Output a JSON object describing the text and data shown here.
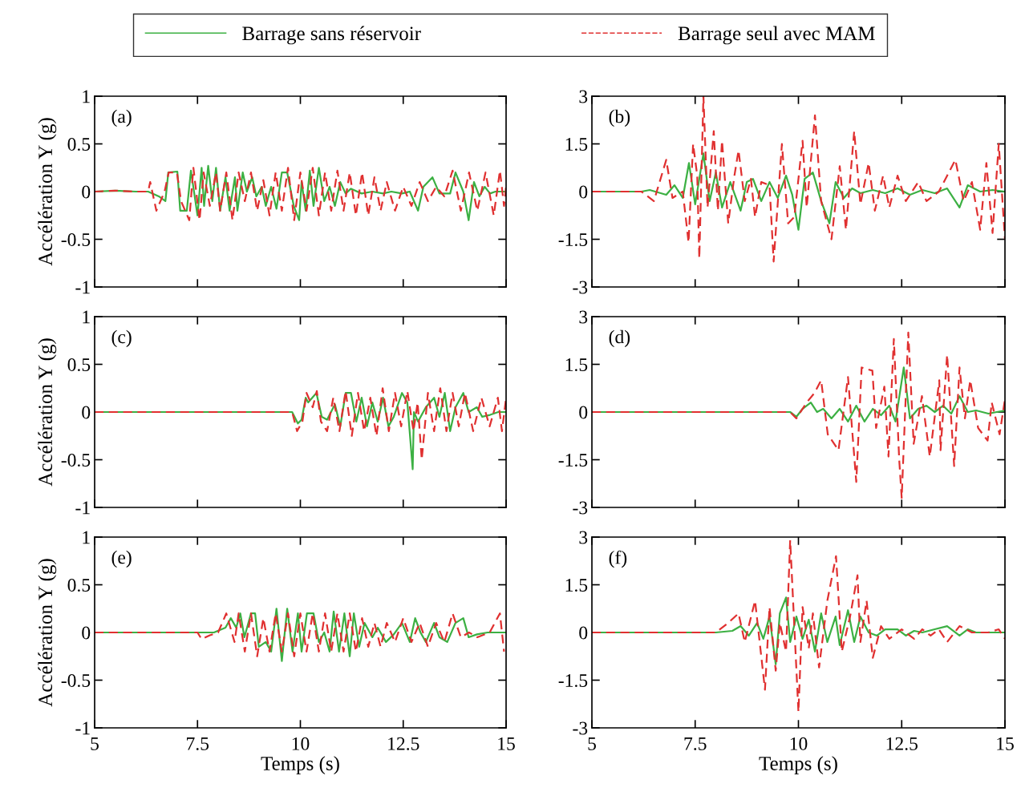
{
  "chart_data": [
    {
      "type": "line",
      "ylabel": "Accélération Y (g)",
      "annotations": [
        "(a)"
      ],
      "xlim": [
        5,
        15
      ],
      "xticks": [
        5,
        7.5,
        10,
        12.5,
        15
      ],
      "ylim": [
        -1,
        1
      ],
      "yticks": [
        -1,
        -0.5,
        0,
        0.5,
        1
      ],
      "tick_labels": "y",
      "legend": "top",
      "grid": false,
      "series": [
        {
          "name": "Barrage sans réservoir",
          "color": "#3cb043",
          "line_style": "solid",
          "x": [
            5,
            5.5,
            6.0,
            6.3,
            6.56,
            6.72,
            6.79,
            7.01,
            7.08,
            7.24,
            7.34,
            7.5,
            7.6,
            7.66,
            7.76,
            7.86,
            7.95,
            8.05,
            8.18,
            8.28,
            8.41,
            8.47,
            8.6,
            8.7,
            8.83,
            8.93,
            9.06,
            9.16,
            9.29,
            9.42,
            9.55,
            9.68,
            9.84,
            9.97,
            10.03,
            10.13,
            10.23,
            10.32,
            10.45,
            10.58,
            10.71,
            10.84,
            10.97,
            11.1,
            11.23,
            11.49,
            11.75,
            12.01,
            12.21,
            12.47,
            12.66,
            12.86,
            12.99,
            13.21,
            13.38,
            13.64,
            13.77,
            13.96,
            14.09,
            14.22,
            14.35,
            14.48,
            14.61,
            14.74,
            15.0
          ],
          "values": [
            0,
            0.01,
            0,
            0,
            -0.05,
            -0.1,
            0.2,
            0.21,
            -0.2,
            -0.2,
            0.22,
            -0.25,
            0.25,
            -0.15,
            0.27,
            -0.1,
            0.25,
            -0.2,
            0.15,
            -0.2,
            0.15,
            -0.2,
            0.2,
            0.0,
            0.15,
            -0.05,
            0.05,
            -0.15,
            0.05,
            -0.18,
            0.2,
            0.2,
            -0.15,
            -0.3,
            0.1,
            -0.2,
            0.22,
            -0.15,
            0.25,
            -0.1,
            0.05,
            -0.15,
            0.1,
            -0.02,
            0.03,
            -0.02,
            0.0,
            -0.02,
            0.0,
            -0.02,
            0.0,
            -0.2,
            0.05,
            0.15,
            -0.02,
            -0.02,
            0.2,
            0.0,
            -0.3,
            0.1,
            -0.05,
            0.05,
            -0.02,
            0.0,
            0.0
          ]
        },
        {
          "name": "Barrage seul avec MAM",
          "color": "#e03030",
          "line_style": "dashed",
          "x": [
            5,
            5.5,
            6.0,
            6.3,
            6.35,
            6.5,
            6.7,
            6.8,
            7.0,
            7.1,
            7.3,
            7.4,
            7.55,
            7.65,
            7.8,
            7.95,
            8.05,
            8.2,
            8.35,
            8.5,
            8.65,
            8.8,
            8.95,
            9.1,
            9.25,
            9.4,
            9.55,
            9.7,
            9.85,
            10.0,
            10.15,
            10.3,
            10.45,
            10.6,
            10.75,
            10.9,
            11.05,
            11.2,
            11.35,
            11.5,
            11.65,
            11.8,
            11.95,
            12.1,
            12.3,
            12.5,
            12.7,
            12.9,
            13.1,
            13.3,
            13.5,
            13.7,
            13.9,
            14.1,
            14.3,
            14.5,
            14.7,
            14.85,
            14.95,
            15.0
          ],
          "values": [
            0,
            0.01,
            0,
            0,
            0.1,
            -0.2,
            0.0,
            0.2,
            0.2,
            -0.1,
            -0.3,
            0.25,
            -0.3,
            0.2,
            -0.15,
            0.2,
            -0.2,
            0.2,
            -0.3,
            0.2,
            -0.1,
            0.2,
            -0.2,
            0.12,
            -0.25,
            0.2,
            -0.2,
            0.25,
            -0.3,
            0.2,
            -0.2,
            0.25,
            -0.25,
            0.2,
            -0.2,
            0.22,
            -0.2,
            0.2,
            -0.25,
            0.2,
            -0.25,
            0.15,
            -0.2,
            0.1,
            -0.2,
            0.05,
            -0.15,
            0.1,
            -0.1,
            0.05,
            -0.05,
            0.22,
            -0.2,
            0.2,
            -0.2,
            0.2,
            -0.25,
            0.22,
            -0.15,
            0.05
          ]
        }
      ]
    },
    {
      "type": "line",
      "annotations": [
        "(b)"
      ],
      "xlim": [
        5,
        15
      ],
      "xticks": [
        5,
        7.5,
        10,
        12.5,
        15
      ],
      "ylim": [
        -3,
        3
      ],
      "yticks": [
        -3,
        -1.5,
        0,
        1.5,
        3
      ],
      "tick_labels": "y",
      "grid": false,
      "series": [
        {
          "color": "#3cb043",
          "line_style": "solid",
          "x": [
            5,
            6.2,
            6.4,
            6.8,
            7.0,
            7.2,
            7.35,
            7.5,
            7.7,
            7.85,
            8.0,
            8.15,
            8.35,
            8.6,
            8.75,
            8.9,
            9.1,
            9.3,
            9.5,
            9.7,
            9.85,
            10.0,
            10.15,
            10.35,
            10.55,
            10.75,
            10.9,
            11.1,
            11.3,
            11.5,
            11.8,
            12.1,
            12.4,
            12.7,
            13.0,
            13.3,
            13.6,
            13.9,
            14.1,
            14.4,
            14.7,
            15.0
          ],
          "values": [
            0,
            0,
            0.05,
            -0.1,
            0.2,
            -0.2,
            0.9,
            -0.4,
            1.2,
            -0.3,
            0.6,
            -0.5,
            0.3,
            -0.6,
            0.3,
            0.4,
            -0.3,
            0.3,
            -0.2,
            0.5,
            -0.1,
            -1.2,
            0.4,
            0.6,
            -0.3,
            -1.0,
            0.3,
            -0.2,
            0.1,
            -0.05,
            0.05,
            -0.05,
            0.1,
            -0.1,
            0.05,
            -0.05,
            0.1,
            -0.5,
            0.2,
            0.0,
            0.05,
            0.0
          ]
        },
        {
          "color": "#e03030",
          "line_style": "dashed",
          "x": [
            5,
            6.2,
            6.5,
            6.8,
            6.95,
            7.2,
            7.34,
            7.45,
            7.55,
            7.6,
            7.7,
            7.8,
            7.95,
            8.05,
            8.15,
            8.3,
            8.45,
            8.55,
            8.7,
            8.85,
            8.95,
            9.1,
            9.3,
            9.4,
            9.6,
            9.75,
            9.9,
            10.1,
            10.2,
            10.4,
            10.55,
            10.8,
            11.0,
            11.15,
            11.35,
            11.5,
            11.7,
            11.85,
            12.05,
            12.2,
            12.4,
            12.6,
            12.9,
            13.1,
            13.4,
            13.6,
            13.8,
            14.0,
            14.2,
            14.4,
            14.55,
            14.7,
            14.85,
            15.0
          ],
          "values": [
            0,
            0,
            -0.3,
            1.0,
            -0.2,
            0.0,
            -1.6,
            1.5,
            0.5,
            -2.1,
            3.0,
            -0.5,
            1.9,
            -0.6,
            1.6,
            -1.0,
            0.5,
            1.3,
            -0.3,
            0.4,
            -0.8,
            0.3,
            0.2,
            -2.2,
            1.5,
            -1.0,
            -0.8,
            1.6,
            -0.5,
            2.4,
            -0.3,
            -1.5,
            0.8,
            -1.2,
            1.9,
            -0.4,
            0.9,
            -0.6,
            0.5,
            -0.5,
            0.5,
            -0.3,
            0.3,
            -0.3,
            0.0,
            0.5,
            1.0,
            -0.3,
            0.3,
            -1.2,
            0.9,
            -1.3,
            1.5,
            -1.5
          ]
        }
      ]
    },
    {
      "type": "line",
      "ylabel": "Accélération Y (g)",
      "annotations": [
        "(c)"
      ],
      "xlim": [
        5,
        15
      ],
      "xticks": [
        5,
        7.5,
        10,
        12.5,
        15
      ],
      "ylim": [
        -1,
        1
      ],
      "yticks": [
        -1,
        -0.5,
        0,
        0.5,
        1
      ],
      "tick_labels": "y",
      "grid": false,
      "series": [
        {
          "color": "#3cb043",
          "line_style": "solid",
          "x": [
            5,
            9.8,
            9.94,
            10.03,
            10.13,
            10.19,
            10.39,
            10.52,
            10.65,
            10.84,
            10.97,
            11.1,
            11.23,
            11.36,
            11.49,
            11.62,
            11.75,
            11.88,
            12.01,
            12.14,
            12.27,
            12.47,
            12.6,
            12.73,
            12.76,
            12.86,
            13.05,
            13.25,
            13.38,
            13.51,
            13.64,
            13.77,
            13.96,
            14.09,
            14.29,
            14.42,
            14.61,
            14.81,
            15.0
          ],
          "values": [
            0,
            0.0,
            -0.12,
            -0.08,
            0.15,
            0.1,
            0.2,
            -0.05,
            -0.08,
            0.08,
            -0.15,
            0.2,
            0.2,
            -0.1,
            0.15,
            -0.15,
            0.1,
            -0.1,
            0.15,
            -0.15,
            -0.05,
            0.2,
            0.1,
            -0.6,
            0.0,
            -0.1,
            0.05,
            0.15,
            -0.05,
            0.2,
            -0.2,
            0.05,
            0.2,
            0.0,
            0.05,
            -0.05,
            -0.03,
            0.0,
            0.0
          ]
        },
        {
          "color": "#e03030",
          "line_style": "dashed",
          "x": [
            5,
            9.8,
            9.92,
            10.05,
            10.15,
            10.3,
            10.4,
            10.5,
            10.65,
            10.8,
            10.95,
            11.1,
            11.25,
            11.4,
            11.55,
            11.7,
            11.85,
            12.0,
            12.15,
            12.3,
            12.45,
            12.6,
            12.75,
            12.85,
            12.95,
            13.1,
            13.25,
            13.4,
            13.55,
            13.7,
            13.85,
            14.0,
            14.2,
            14.4,
            14.6,
            14.8,
            14.9,
            15.0
          ],
          "values": [
            0,
            0,
            -0.2,
            -0.1,
            0.2,
            0.05,
            0.22,
            -0.1,
            -0.2,
            0.15,
            -0.2,
            0.22,
            -0.25,
            0.2,
            -0.2,
            0.15,
            -0.25,
            0.25,
            -0.2,
            0.2,
            -0.15,
            0.22,
            -0.2,
            0.1,
            -0.5,
            0.2,
            -0.2,
            0.25,
            -0.2,
            0.2,
            -0.15,
            0.2,
            -0.2,
            0.15,
            -0.15,
            0.15,
            -0.2,
            0.15
          ]
        }
      ]
    },
    {
      "type": "line",
      "annotations": [
        "(d)"
      ],
      "xlim": [
        5,
        15
      ],
      "xticks": [
        5,
        7.5,
        10,
        12.5,
        15
      ],
      "ylim": [
        -3,
        3
      ],
      "yticks": [
        -3,
        -1.5,
        0,
        1.5,
        3
      ],
      "tick_labels": "y",
      "grid": false,
      "series": [
        {
          "color": "#3cb043",
          "line_style": "solid",
          "x": [
            5,
            9.8,
            9.95,
            10.1,
            10.3,
            10.45,
            10.6,
            10.8,
            11.0,
            11.2,
            11.4,
            11.6,
            11.8,
            12.0,
            12.2,
            12.35,
            12.55,
            12.7,
            12.9,
            13.1,
            13.3,
            13.5,
            13.7,
            13.9,
            14.1,
            14.3,
            14.6,
            14.8,
            15.0
          ],
          "values": [
            0,
            0,
            -0.15,
            0.1,
            0.3,
            0.0,
            0.1,
            -0.2,
            0.1,
            -0.3,
            0.2,
            -0.3,
            0.1,
            -0.1,
            0.2,
            -0.3,
            1.4,
            -0.2,
            0.1,
            0.2,
            0.0,
            0.2,
            -0.05,
            0.5,
            0.0,
            0.05,
            -0.05,
            0.0,
            0.05
          ]
        },
        {
          "color": "#e03030",
          "line_style": "dashed",
          "x": [
            5,
            9.8,
            9.95,
            10.2,
            10.39,
            10.55,
            10.71,
            10.97,
            11.2,
            11.4,
            11.53,
            11.79,
            11.88,
            12.08,
            12.18,
            12.31,
            12.44,
            12.5,
            12.66,
            12.79,
            12.99,
            13.18,
            13.41,
            13.44,
            13.6,
            13.77,
            13.9,
            14.03,
            14.16,
            14.35,
            14.58,
            14.68,
            14.87,
            15.0
          ],
          "values": [
            0,
            0,
            -0.2,
            0.3,
            0.6,
            1.0,
            -0.7,
            -1.2,
            1.1,
            -2.2,
            1.4,
            1.3,
            -0.5,
            0.8,
            -1.4,
            2.3,
            -1.5,
            -2.7,
            2.5,
            -1.0,
            0.5,
            -1.4,
            1.0,
            -1.2,
            1.8,
            -1.7,
            1.4,
            -0.2,
            1.0,
            -0.5,
            -0.9,
            0.3,
            -0.7,
            0.4
          ]
        }
      ]
    },
    {
      "type": "line",
      "xlabel": "Temps (s)",
      "ylabel": "Accélération Y (g)",
      "annotations": [
        "(e)"
      ],
      "xlim": [
        5,
        15
      ],
      "xticks": [
        5,
        7.5,
        10,
        12.5,
        15
      ],
      "ylim": [
        -1,
        1
      ],
      "yticks": [
        -1,
        -0.5,
        0,
        0.5,
        1
      ],
      "grid": false,
      "series": [
        {
          "color": "#3cb043",
          "line_style": "solid",
          "x": [
            5,
            7.5,
            7.9,
            8.18,
            8.31,
            8.44,
            8.54,
            8.64,
            8.8,
            8.9,
            8.99,
            9.16,
            9.29,
            9.42,
            9.55,
            9.68,
            9.81,
            9.94,
            10.03,
            10.16,
            10.32,
            10.45,
            10.58,
            10.71,
            10.81,
            10.94,
            11.07,
            11.2,
            11.3,
            11.43,
            11.56,
            11.75,
            11.88,
            12.08,
            12.27,
            12.47,
            12.66,
            12.79,
            12.92,
            13.05,
            13.25,
            13.38,
            13.57,
            13.77,
            13.96,
            14.09,
            14.29,
            14.55,
            14.74,
            15.0
          ],
          "values": [
            0,
            0.0,
            0.0,
            0.05,
            0.15,
            0.05,
            0.2,
            -0.05,
            0.2,
            0.2,
            -0.15,
            -0.1,
            -0.2,
            0.25,
            -0.3,
            0.25,
            -0.2,
            0.2,
            -0.2,
            0.2,
            0.2,
            -0.1,
            0.0,
            -0.2,
            0.22,
            -0.2,
            0.2,
            -0.25,
            0.2,
            -0.15,
            0.1,
            -0.05,
            0.05,
            -0.1,
            -0.02,
            0.1,
            -0.1,
            0.15,
            0.0,
            -0.1,
            0.1,
            -0.05,
            -0.1,
            0.1,
            0.15,
            -0.05,
            -0.02,
            0.0,
            0.0,
            0.0
          ]
        },
        {
          "color": "#e03030",
          "line_style": "dashed",
          "x": [
            5,
            7.5,
            7.6,
            7.8,
            8.0,
            8.2,
            8.4,
            8.5,
            8.65,
            8.8,
            8.95,
            9.1,
            9.25,
            9.4,
            9.55,
            9.7,
            9.85,
            10.0,
            10.15,
            10.3,
            10.45,
            10.6,
            10.75,
            10.9,
            11.05,
            11.2,
            11.35,
            11.5,
            11.65,
            11.8,
            11.95,
            12.1,
            12.3,
            12.5,
            12.7,
            12.9,
            13.1,
            13.3,
            13.5,
            13.7,
            13.9,
            14.1,
            14.3,
            14.6,
            14.85,
            14.95
          ],
          "values": [
            0,
            0,
            -0.07,
            -0.03,
            0.0,
            0.2,
            -0.1,
            0.2,
            -0.2,
            0.2,
            -0.25,
            0.15,
            -0.2,
            0.2,
            -0.2,
            0.2,
            -0.25,
            0.2,
            -0.2,
            0.2,
            -0.2,
            0.2,
            -0.2,
            0.2,
            -0.2,
            0.2,
            -0.2,
            0.15,
            -0.15,
            0.1,
            -0.15,
            0.1,
            -0.1,
            0.15,
            -0.1,
            0.1,
            -0.15,
            0.1,
            -0.1,
            0.2,
            -0.05,
            0.0,
            -0.05,
            0.0,
            0.2,
            -0.2
          ]
        }
      ]
    },
    {
      "type": "line",
      "xlabel": "Temps (s)",
      "annotations": [
        "(f)"
      ],
      "xlim": [
        5,
        15
      ],
      "xticks": [
        5,
        7.5,
        10,
        12.5,
        15
      ],
      "ylim": [
        -3,
        3
      ],
      "yticks": [
        -3,
        -1.5,
        0,
        1.5,
        3
      ],
      "grid": false,
      "series": [
        {
          "color": "#3cb043",
          "line_style": "solid",
          "x": [
            5,
            8.0,
            8.4,
            8.6,
            8.8,
            9.0,
            9.15,
            9.3,
            9.45,
            9.55,
            9.7,
            9.8,
            9.95,
            10.1,
            10.25,
            10.4,
            10.55,
            10.7,
            10.9,
            11.0,
            11.2,
            11.35,
            11.5,
            11.7,
            11.9,
            12.1,
            12.4,
            12.6,
            12.8,
            13.0,
            13.3,
            13.6,
            13.9,
            14.1,
            14.3,
            14.7,
            15.0
          ],
          "values": [
            0,
            0,
            0.05,
            0.2,
            -0.1,
            0.3,
            -0.2,
            0.5,
            -1.0,
            0.6,
            1.1,
            -0.3,
            0.5,
            -0.2,
            0.4,
            -0.6,
            0.6,
            -0.3,
            0.5,
            -0.4,
            0.7,
            -0.3,
            0.5,
            0.0,
            -0.1,
            0.1,
            0.1,
            -0.1,
            0.05,
            0.0,
            0.1,
            0.2,
            -0.1,
            0.1,
            0.0,
            0.0,
            0.0
          ]
        },
        {
          "color": "#e03030",
          "line_style": "dashed",
          "x": [
            5,
            8.0,
            8.3,
            8.55,
            8.7,
            8.95,
            9.19,
            9.3,
            9.45,
            9.55,
            9.7,
            9.8,
            10.0,
            10.1,
            10.25,
            10.35,
            10.5,
            10.7,
            10.91,
            11.05,
            11.25,
            11.43,
            11.5,
            11.65,
            11.8,
            12.0,
            12.2,
            12.5,
            12.8,
            13.0,
            13.2,
            13.4,
            13.6,
            13.9,
            14.2,
            14.6,
            14.85,
            15.0
          ],
          "values": [
            0,
            0,
            0.3,
            0.6,
            -0.3,
            1.0,
            -1.8,
            0.8,
            -1.2,
            0.3,
            -0.6,
            2.9,
            -2.5,
            0.8,
            -0.5,
            0.6,
            -1.1,
            1.0,
            2.4,
            -0.6,
            0.5,
            1.8,
            -0.3,
            1.0,
            -0.8,
            0.2,
            -0.2,
            0.1,
            -0.2,
            0.1,
            -0.1,
            0.1,
            -0.3,
            0.2,
            0.0,
            0.0,
            0.1,
            -0.2
          ]
        }
      ]
    }
  ]
}
